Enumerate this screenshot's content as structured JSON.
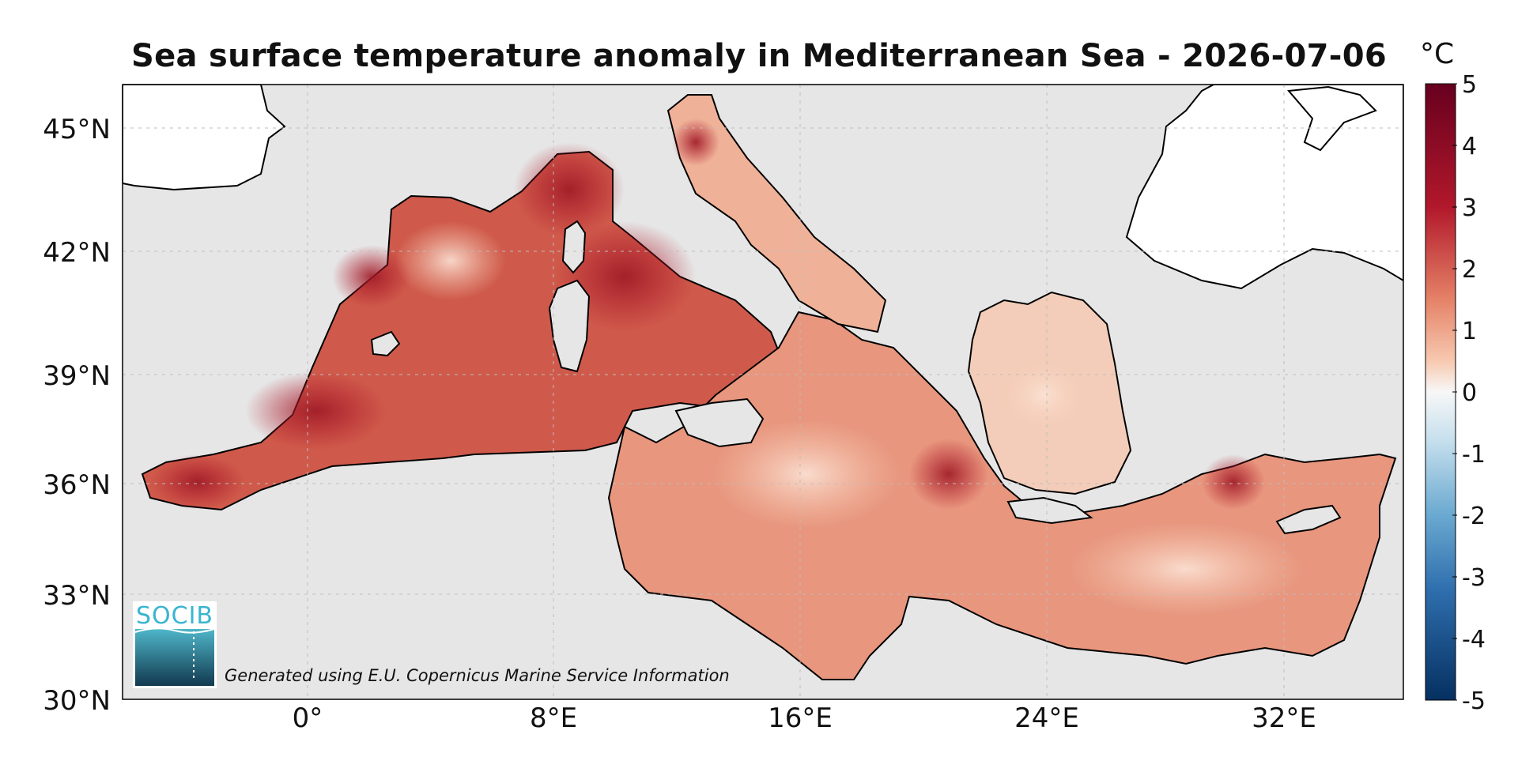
{
  "map": {
    "title": "Sea surface temperature anomaly in Mediterranean Sea - 2026-07-06",
    "lat_labels": [
      "45°N",
      "42°N",
      "39°N",
      "36°N",
      "33°N",
      "30°N"
    ],
    "lon_labels": [
      "0°",
      "8°E",
      "16°E",
      "24°E",
      "32°E"
    ],
    "credit": "Generated using E.U. Copernicus Marine Service Information"
  },
  "colorbar": {
    "unit": "°C",
    "ticks": [
      "5",
      "4",
      "3",
      "2",
      "1",
      "0",
      "-1",
      "-2",
      "-3",
      "-4",
      "-5"
    ],
    "min": -5,
    "max": 5,
    "colors": {
      "high": "#67001f",
      "mid_high": "#d6604d",
      "neutral": "#f7f7f7",
      "mid_low": "#4393c3",
      "low": "#053061"
    }
  },
  "logo": {
    "text": "SOCIB"
  },
  "colors": {
    "land": "#e6e6e6",
    "coast": "#000000",
    "grid": "#bdbdbd"
  }
}
